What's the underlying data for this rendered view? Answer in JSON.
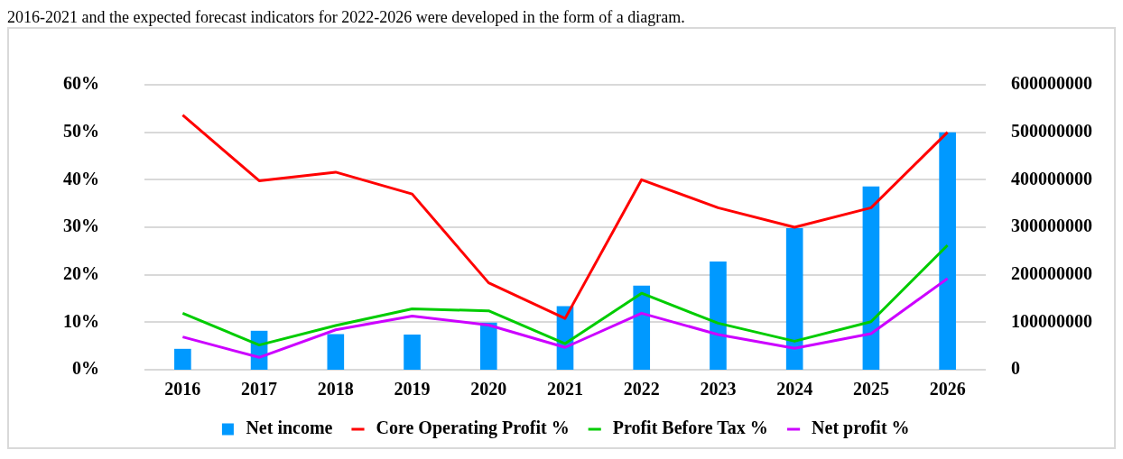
{
  "chart_data": {
    "type": "bar",
    "annotations": [
      "2016-2021 and the expected forecast indicators for 2022-2026 were developed in the form of a diagram."
    ],
    "categories": [
      "2016",
      "2017",
      "2018",
      "2019",
      "2020",
      "2021",
      "2022",
      "2023",
      "2024",
      "2025",
      "2026"
    ],
    "series": [
      {
        "name": "Net income",
        "axis": "y2",
        "color": "#0099ff",
        "values": [
          44000000,
          82000000,
          75000000,
          74000000,
          99000000,
          134000000,
          177000000,
          228000000,
          298000000,
          386000000,
          500000000
        ]
      },
      {
        "name": "Core Operating Profit %",
        "type": "line",
        "color": "#ff0000",
        "values": [
          53.6,
          39.8,
          41.6,
          37,
          18.3,
          10.8,
          40,
          34.1,
          30,
          34.1,
          50
        ]
      },
      {
        "name": "Profit Before Tax %",
        "type": "line",
        "color": "#00cc00",
        "values": [
          11.9,
          5.2,
          9.3,
          12.8,
          12.4,
          5.5,
          16.1,
          9.8,
          6,
          10.1,
          26.2
        ]
      },
      {
        "name": "Net profit %",
        "type": "line",
        "color": "#cc00ff",
        "values": [
          6.9,
          2.6,
          8.4,
          11.3,
          9.4,
          4.7,
          11.9,
          7.4,
          4.5,
          7.6,
          19.2
        ]
      }
    ],
    "ylim": [
      0,
      60
    ],
    "yticks": [
      {
        "value": 0,
        "label": "0%"
      },
      {
        "value": 10,
        "label": "10%"
      },
      {
        "value": 20,
        "label": "20%"
      },
      {
        "value": 30,
        "label": "30%"
      },
      {
        "value": 40,
        "label": "40%"
      },
      {
        "value": 50,
        "label": "50%"
      },
      {
        "value": 60,
        "label": "60%"
      }
    ],
    "y2lim": [
      0,
      600000000
    ],
    "y2ticks": [
      0,
      100000000,
      200000000,
      300000000,
      400000000,
      500000000,
      600000000
    ],
    "grid": "y",
    "legend": "bottom",
    "marker": "none"
  }
}
